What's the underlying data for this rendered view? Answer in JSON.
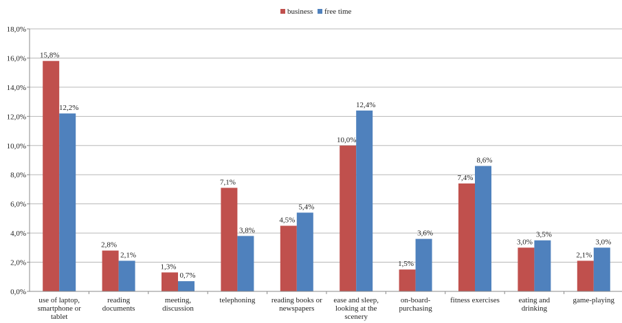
{
  "chart_data": {
    "type": "bar",
    "categories": [
      [
        "use of laptop,",
        "smartphone or",
        "tablet"
      ],
      [
        "reading",
        "documents"
      ],
      [
        "meeting,",
        "discussion"
      ],
      [
        "telephoning"
      ],
      [
        "reading books or",
        "newspapers"
      ],
      [
        "ease and sleep,",
        "looking at the",
        "scenery"
      ],
      [
        "on-board-",
        "purchasing"
      ],
      [
        "fitness exercises"
      ],
      [
        "eating and",
        "drinking"
      ],
      [
        "game-playing"
      ]
    ],
    "series": [
      {
        "name": "business",
        "color": "#c0504d",
        "values": [
          15.8,
          2.8,
          1.3,
          7.1,
          4.5,
          10.0,
          1.5,
          7.4,
          3.0,
          2.1
        ],
        "labels": [
          "15,8%",
          "2,8%",
          "1,3%",
          "7,1%",
          "4,5%",
          "10,0%",
          "1,5%",
          "7,4%",
          "3,0%",
          "2,1%"
        ]
      },
      {
        "name": "free time",
        "color": "#4f81bd",
        "values": [
          12.2,
          2.1,
          0.7,
          3.8,
          5.4,
          12.4,
          3.6,
          8.6,
          3.5,
          3.0
        ],
        "labels": [
          "12,2%",
          "2,1%",
          "0,7%",
          "3,8%",
          "5,4%",
          "12,4%",
          "3,6%",
          "8,6%",
          "3,5%",
          "3,0%"
        ]
      }
    ],
    "ylim": [
      0,
      18
    ],
    "yticks": [
      0,
      2,
      4,
      6,
      8,
      10,
      12,
      14,
      16,
      18
    ],
    "ytick_labels": [
      "0,0%",
      "2,0%",
      "4,0%",
      "6,0%",
      "8,0%",
      "10,0%",
      "12,0%",
      "14,0%",
      "16,0%",
      "18,0%"
    ],
    "grid": true,
    "legend_position": "top-center",
    "gridline_color": "#b7b7b7",
    "axis_color": "#888888"
  }
}
